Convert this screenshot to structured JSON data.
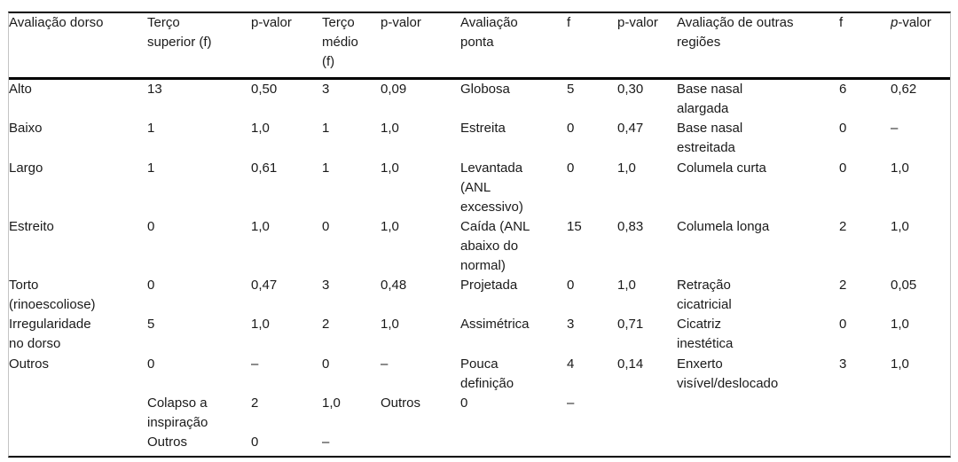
{
  "table": {
    "headers": [
      "Avaliação dorso",
      "Terço\nsuperior (f)",
      "p-valor",
      "Terço\nmédio\n(f)",
      "p-valor",
      "Avaliação\nponta",
      "f",
      "p-valor",
      "Avaliação de outras\nregiões",
      "f"
    ],
    "last_header": {
      "italic": "p",
      "rest": "-valor"
    },
    "rows": [
      [
        "Alto",
        "13",
        "0,50",
        "3",
        "0,09",
        "Globosa",
        "5",
        "0,30",
        "Base nasal\nalargada",
        "6",
        "0,62"
      ],
      [
        "Baixo",
        "1",
        "1,0",
        "1",
        "1,0",
        "Estreita",
        "0",
        "0,47",
        "Base nasal\nestreitada",
        "0",
        "–"
      ],
      [
        "Largo",
        "1",
        "0,61",
        "1",
        "1,0",
        "Levantada\n(ANL\nexcessivo)",
        "0",
        "1,0",
        "Columela curta",
        "0",
        "1,0"
      ],
      [
        "Estreito",
        "0",
        "1,0",
        "0",
        "1,0",
        "Caída (ANL\nabaixo do\nnormal)",
        "15",
        "0,83",
        "Columela longa",
        "2",
        "1,0"
      ],
      [
        "Torto\n(rinoescoliose)",
        "0",
        "0,47",
        "3",
        "0,48",
        "Projetada",
        "0",
        "1,0",
        "Retração\ncicatricial",
        "2",
        "0,05"
      ],
      [
        "Irregularidade\nno dorso",
        "5",
        "1,0",
        "2",
        "1,0",
        "Assimétrica",
        "3",
        "0,71",
        "Cicatriz\ninestética",
        "0",
        "1,0"
      ],
      [
        "Outros",
        "0",
        "–",
        "0",
        "–",
        "Pouca\ndefinição",
        "4",
        "0,14",
        "Enxerto\nvisível/deslocado",
        "3",
        "1,0"
      ],
      [
        "",
        "Colapso a\ninspiração",
        "2",
        "1,0",
        "Outros",
        "0",
        "–",
        "",
        "",
        "",
        ""
      ],
      [
        "",
        "Outros",
        "0",
        "–",
        "",
        "",
        "",
        "",
        "",
        "",
        ""
      ]
    ]
  }
}
